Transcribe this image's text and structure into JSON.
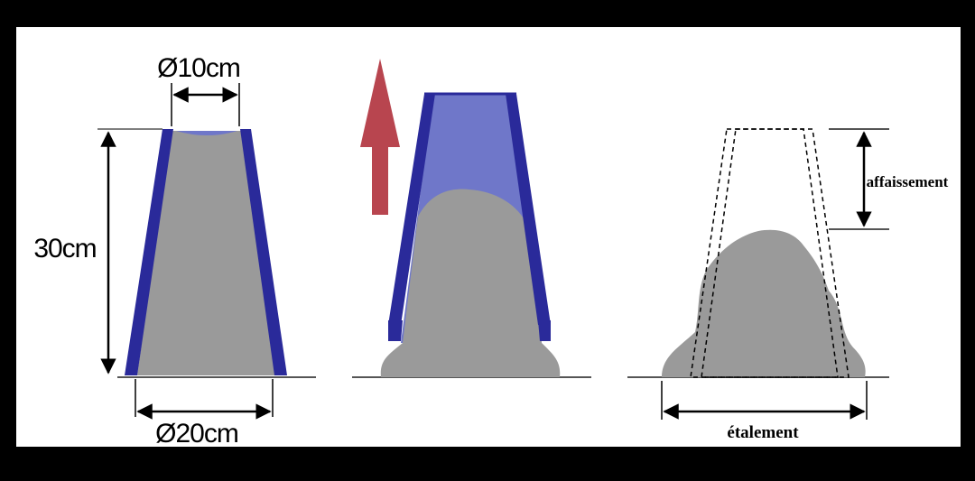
{
  "labels": {
    "top_diameter": "Ø10cm",
    "height": "30cm",
    "bottom_diameter": "Ø20cm",
    "slump": "affaissement",
    "spread": "étalement"
  },
  "colors": {
    "background": "#000000",
    "panel": "#ffffff",
    "cone_wall": "#2a2a9a",
    "cone_fill_light": "#6f77c9",
    "concrete": "#9a9a9a",
    "arrow": "#b8454f",
    "line": "#000000"
  },
  "icons": {
    "lift_arrow": "up-arrow-icon"
  }
}
